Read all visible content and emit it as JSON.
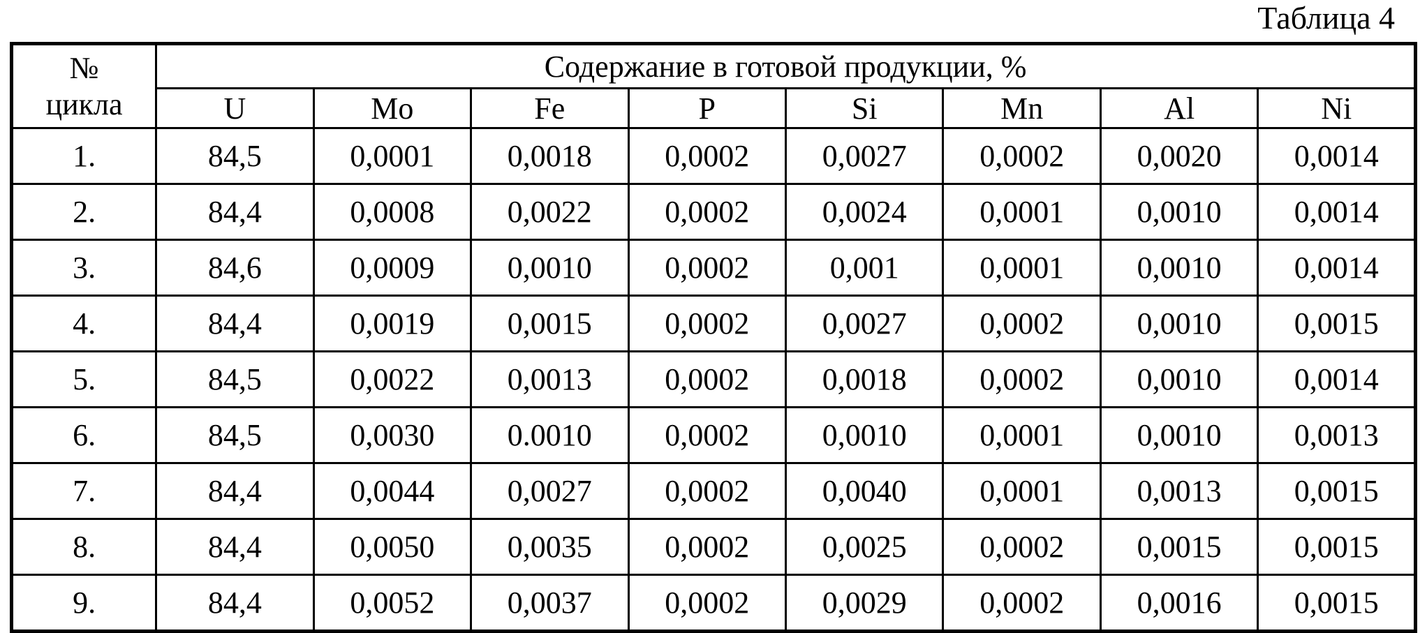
{
  "page": {
    "title": "Таблица 4"
  },
  "table": {
    "corner_header": {
      "line1": "№",
      "line2": "цикла"
    },
    "group_header": "Содержание в готовой продукции, %",
    "element_columns": [
      "U",
      "Mo",
      "Fe",
      "P",
      "Si",
      "Mn",
      "Al",
      "Ni"
    ],
    "rows": [
      {
        "num": "1.",
        "values": [
          "84,5",
          "0,0001",
          "0,0018",
          "0,0002",
          "0,0027",
          "0,0002",
          "0,0020",
          "0,0014"
        ]
      },
      {
        "num": "2.",
        "values": [
          "84,4",
          "0,0008",
          "0,0022",
          "0,0002",
          "0,0024",
          "0,0001",
          "0,0010",
          "0,0014"
        ]
      },
      {
        "num": "3.",
        "values": [
          "84,6",
          "0,0009",
          "0,0010",
          "0,0002",
          "0,001",
          "0,0001",
          "0,0010",
          "0,0014"
        ]
      },
      {
        "num": "4.",
        "values": [
          "84,4",
          "0,0019",
          "0,0015",
          "0,0002",
          "0,0027",
          "0,0002",
          "0,0010",
          "0,0015"
        ]
      },
      {
        "num": "5.",
        "values": [
          "84,5",
          "0,0022",
          "0,0013",
          "0,0002",
          "0,0018",
          "0,0002",
          "0,0010",
          "0,0014"
        ]
      },
      {
        "num": "6.",
        "values": [
          "84,5",
          "0,0030",
          "0.0010",
          "0,0002",
          "0,0010",
          "0,0001",
          "0,0010",
          "0,0013"
        ]
      },
      {
        "num": "7.",
        "values": [
          "84,4",
          "0,0044",
          "0,0027",
          "0,0002",
          "0,0040",
          "0,0001",
          "0,0013",
          "0,0015"
        ]
      },
      {
        "num": "8.",
        "values": [
          "84,4",
          "0,0050",
          "0,0035",
          "0,0002",
          "0,0025",
          "0,0002",
          "0,0015",
          "0,0015"
        ]
      },
      {
        "num": "9.",
        "values": [
          "84,4",
          "0,0052",
          "0,0037",
          "0,0002",
          "0,0029",
          "0,0002",
          "0,0016",
          "0,0015"
        ]
      }
    ]
  }
}
